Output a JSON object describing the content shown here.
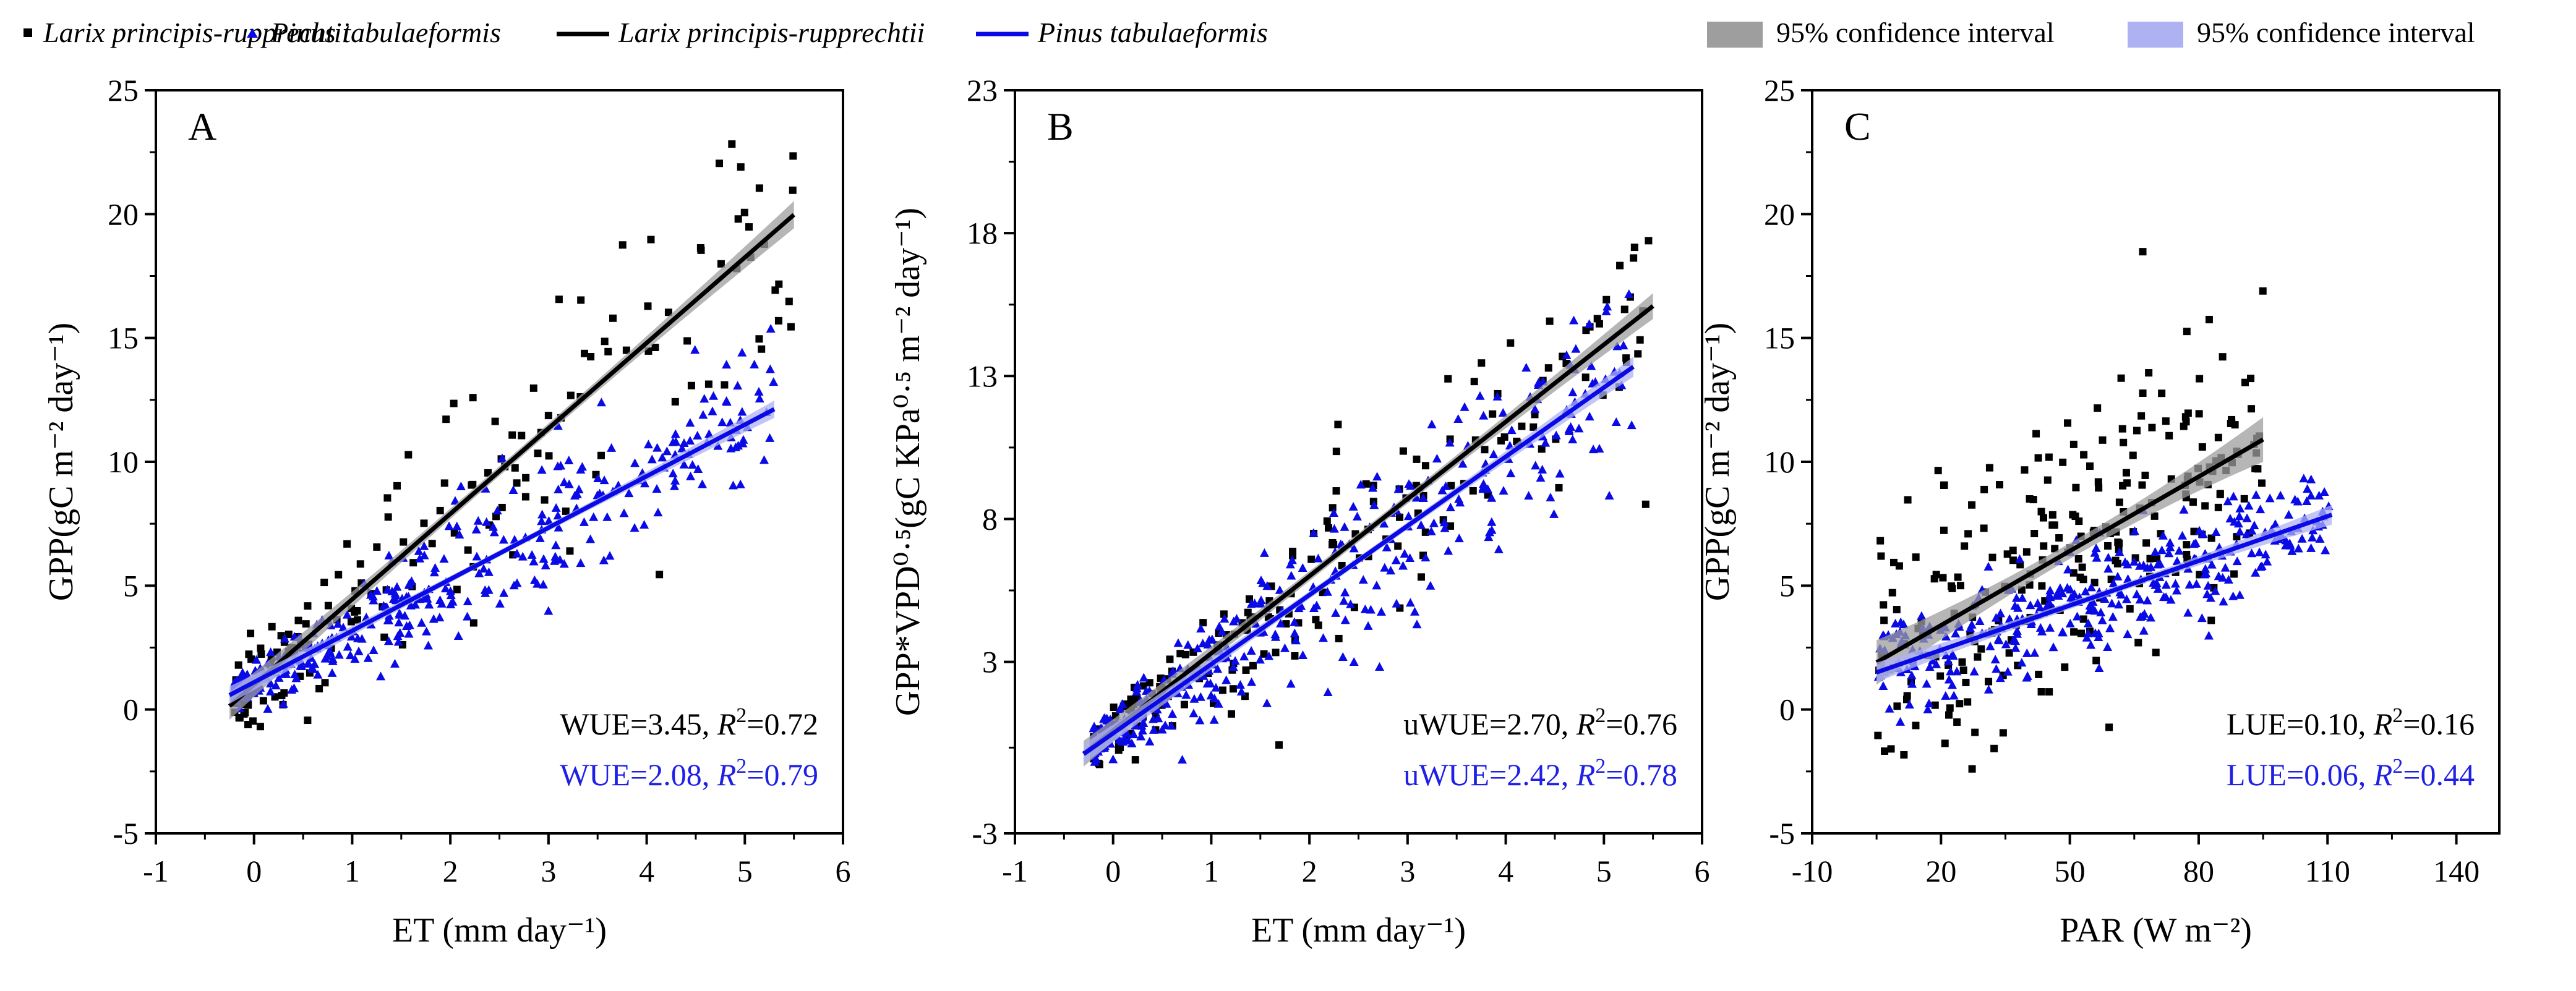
{
  "colors": {
    "larix": "#000000",
    "pinus": "#0a0ae6",
    "ci_larix": "#9e9e9e",
    "ci_pinus": "#aeb2f2"
  },
  "legend": {
    "larix_points": "Larix principis-rupprechtii",
    "pinus_points": "Pinus tabulaeformis",
    "larix_line": "Larix principis-rupprechtii",
    "pinus_line": "Pinus tabulaeformis",
    "ci_larix": "95% confidence interval",
    "ci_pinus": "95% confidence interval"
  },
  "chart_data": [
    {
      "type": "scatter",
      "panel": "A",
      "xlabel": "ET (mm day⁻¹)",
      "ylabel": "GPP(gC m⁻² day⁻¹)",
      "xlim": [
        -1,
        6
      ],
      "ylim": [
        -5,
        25
      ],
      "xticks": [
        -1,
        0,
        1,
        2,
        3,
        4,
        5,
        6
      ],
      "yticks": [
        -5,
        0,
        5,
        10,
        15,
        20,
        25
      ],
      "annotations": [
        {
          "series": "larix",
          "label": "WUE=3.45, ",
          "r2": "=0.72"
        },
        {
          "series": "pinus",
          "label": "WUE=2.08, ",
          "r2": "=0.79"
        }
      ],
      "series": [
        {
          "name": "Larix principis-rupprechtii",
          "key": "larix",
          "fit": {
            "x0": -0.25,
            "x1": 5.5,
            "slope": 3.45,
            "intercept": 1.0,
            "ci": 0.55
          },
          "points_summary": {
            "n": 170,
            "x_range": [
              -0.2,
              5.5
            ],
            "noise_sd": 2.8
          }
        },
        {
          "name": "Pinus tabulaeformis",
          "key": "pinus",
          "fit": {
            "x0": -0.25,
            "x1": 5.3,
            "slope": 2.08,
            "intercept": 1.1,
            "ci": 0.35
          },
          "points_summary": {
            "n": 380,
            "x_range": [
              -0.2,
              5.3
            ],
            "noise_sd": 1.4
          }
        }
      ]
    },
    {
      "type": "scatter",
      "panel": "B",
      "xlabel": "ET (mm day⁻¹)",
      "ylabel": "GPP*VPD⁰·⁵(gC KPa⁰·⁵ m⁻² day⁻¹)",
      "xlim": [
        -1,
        6
      ],
      "ylim": [
        -3,
        23
      ],
      "xticks": [
        -1,
        0,
        1,
        2,
        3,
        4,
        5,
        6
      ],
      "yticks": [
        -3,
        3,
        8,
        13,
        18,
        23
      ],
      "annotations": [
        {
          "series": "larix",
          "label": "uWUE=2.70, ",
          "r2": "=0.76"
        },
        {
          "series": "pinus",
          "label": "uWUE=2.42, ",
          "r2": "=0.78"
        }
      ],
      "series": [
        {
          "name": "Larix principis-rupprechtii",
          "key": "larix",
          "fit": {
            "x0": -0.3,
            "x1": 5.5,
            "slope": 2.7,
            "intercept": 0.6,
            "ci": 0.45
          },
          "points_summary": {
            "n": 200,
            "x_range": [
              -0.2,
              5.5
            ],
            "noise_sd": 1.9
          }
        },
        {
          "name": "Pinus tabulaeformis",
          "key": "pinus",
          "fit": {
            "x0": -0.3,
            "x1": 5.3,
            "slope": 2.42,
            "intercept": 0.5,
            "ci": 0.35
          },
          "points_summary": {
            "n": 360,
            "x_range": [
              -0.2,
              5.3
            ],
            "noise_sd": 1.6
          }
        }
      ]
    },
    {
      "type": "scatter",
      "panel": "C",
      "xlabel": "PAR (W m⁻²)",
      "ylabel": "GPP(gC m⁻² day⁻¹)",
      "xlim": [
        -10,
        150
      ],
      "ylim": [
        -5,
        25
      ],
      "xticks": [
        -10,
        20,
        50,
        80,
        110,
        140
      ],
      "xtick_labels": [
        "-10",
        "20",
        "50",
        "80",
        "110",
        "140"
      ],
      "yticks": [
        -5,
        0,
        5,
        10,
        15,
        20,
        25
      ],
      "annotations": [
        {
          "series": "larix",
          "label": "LUE=0.10, ",
          "r2": "=0.16"
        },
        {
          "series": "pinus",
          "label": "LUE=0.06, ",
          "r2": "=0.44"
        }
      ],
      "series": [
        {
          "name": "Larix principis-rupprechtii",
          "key": "larix",
          "fit": {
            "x0": 5,
            "x1": 95,
            "slope": 0.1,
            "intercept": 1.4,
            "ci": 0.9
          },
          "points_summary": {
            "n": 260,
            "x_range": [
              5,
              95
            ],
            "noise_sd": 5.0
          }
        },
        {
          "name": "Pinus tabulaeformis",
          "key": "pinus",
          "fit": {
            "x0": 5,
            "x1": 111,
            "slope": 0.06,
            "intercept": 1.2,
            "ci": 0.4
          },
          "points_summary": {
            "n": 330,
            "x_range": [
              5,
              111
            ],
            "noise_sd": 1.8
          }
        }
      ]
    }
  ]
}
